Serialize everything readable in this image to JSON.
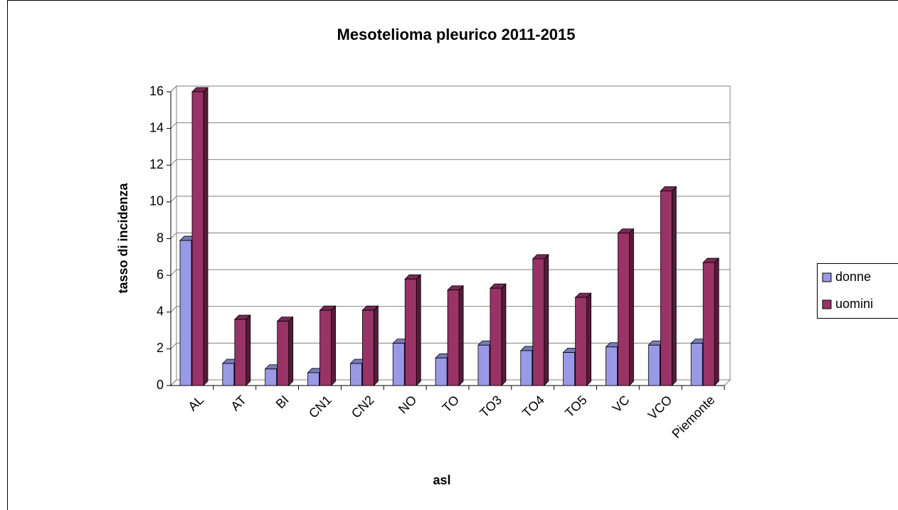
{
  "chart_data": {
    "type": "bar3d",
    "title": "Mesotelioma pleurico 2011-2015",
    "x_label": "asl",
    "y_label": "tasso di incidenza",
    "categories": [
      "AL",
      "AT",
      "BI",
      "CN1",
      "CN2",
      "NO",
      "TO",
      "TO3",
      "TO4",
      "TO5",
      "VC",
      "VCO",
      "Piemonte"
    ],
    "series": [
      {
        "name": "donne",
        "color": "#9999e6",
        "values": [
          7.9,
          1.2,
          0.9,
          0.7,
          1.2,
          2.3,
          1.5,
          2.2,
          1.9,
          1.8,
          2.1,
          2.2,
          2.3
        ]
      },
      {
        "name": "uomini",
        "color": "#993366",
        "values": [
          16,
          3.6,
          3.5,
          4.1,
          4.1,
          5.8,
          5.2,
          5.3,
          6.9,
          4.8,
          8.3,
          10.6,
          6.7
        ]
      }
    ],
    "ylim": [
      0,
      16
    ],
    "yticks": [
      0,
      2,
      4,
      6,
      8,
      10,
      12,
      14,
      16
    ],
    "grid": true,
    "legend": "right"
  }
}
